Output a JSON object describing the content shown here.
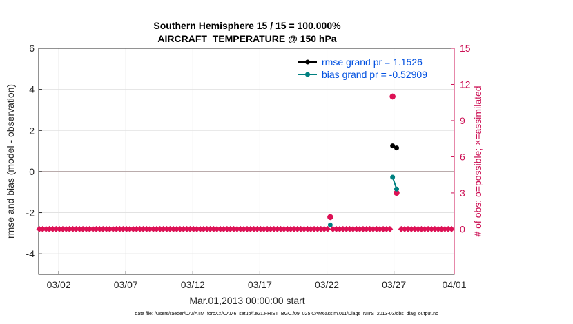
{
  "chart_data": {
    "type": "line",
    "title": [
      "Southern Hemisphere 15 / 15 = 100.000%",
      "AIRCRAFT_TEMPERATURE @ 150 hPa"
    ],
    "xlabel": "Mar.01,2013 00:00:00 start",
    "ylabel": "rmse and bias (model - observation)",
    "y2label": "# of obs: o=possible; ×=assimilated",
    "footer": "data file: /Users/raeder/DAI/ATM_forcXX/CAM6_setup/f.e21.FHIST_BGC.f09_025.CAM6assim.011/Diags_NTrS_2013-03/obs_diag_output.nc",
    "xlim": [
      0.5,
      31.5
    ],
    "ylim": [
      -5,
      6
    ],
    "y2lim": [
      -3.75,
      15
    ],
    "x_ticks": [
      {
        "value": 2,
        "label": "03/02"
      },
      {
        "value": 7,
        "label": "03/07"
      },
      {
        "value": 12,
        "label": "03/12"
      },
      {
        "value": 17,
        "label": "03/17"
      },
      {
        "value": 22,
        "label": "03/22"
      },
      {
        "value": 27,
        "label": "03/27"
      },
      {
        "value": 32,
        "label": "04/01"
      }
    ],
    "y_ticks": [
      {
        "value": -4,
        "label": "-4"
      },
      {
        "value": -2,
        "label": "-2"
      },
      {
        "value": 0,
        "label": "0"
      },
      {
        "value": 2,
        "label": "2"
      },
      {
        "value": 4,
        "label": "4"
      },
      {
        "value": 6,
        "label": "6"
      }
    ],
    "y2_ticks": [
      {
        "value": 0,
        "label": "0"
      },
      {
        "value": 3,
        "label": "3"
      },
      {
        "value": 6,
        "label": "6"
      },
      {
        "value": 9,
        "label": "9"
      },
      {
        "value": 12,
        "label": "12"
      },
      {
        "value": 15,
        "label": "15"
      }
    ],
    "series": [
      {
        "name": "rmse grand pr = 1.1526",
        "color": "#000000",
        "x": [
          26.9,
          27.2
        ],
        "y": [
          1.25,
          1.15
        ]
      },
      {
        "name": "bias grand pr = -0.52909",
        "color": "#008080",
        "x": [
          22.25,
          26.9,
          27.2
        ],
        "y": [
          -2.6,
          -0.27,
          -0.85
        ],
        "connect": [
          false,
          true
        ]
      }
    ],
    "counts": {
      "color": "#dd1155",
      "possible": {
        "x": [
          22.25,
          26.9,
          27.2
        ],
        "y": [
          1,
          11,
          3
        ]
      },
      "assimilated": {
        "x": [
          22.25,
          26.9,
          27.2
        ],
        "y": [
          1,
          11,
          3
        ]
      },
      "zero_segments": [
        [
          0.55,
          22.05
        ],
        [
          22.45,
          26.75
        ],
        [
          27.55,
          31.45
        ]
      ],
      "zero_step": 0.25
    },
    "grid": true,
    "zero_line_color": "#b2a2a2",
    "left_axis_color": "#262626",
    "right_axis_color": "#cc1155",
    "legend_position": "top-right"
  }
}
